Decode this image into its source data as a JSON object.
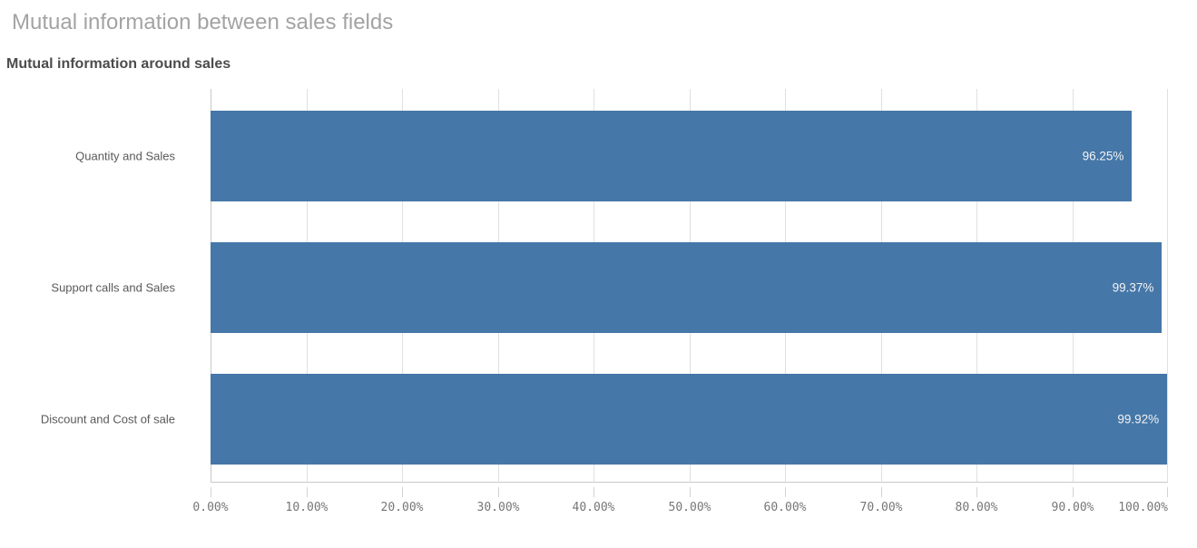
{
  "header": {
    "title": "Mutual information between sales fields",
    "subtitle": "Mutual information around sales"
  },
  "chart_data": {
    "type": "bar",
    "orientation": "horizontal",
    "title": "Mutual information around sales",
    "categories": [
      "Quantity and Sales",
      "Support calls and Sales",
      "Discount and Cost of sale"
    ],
    "values": [
      96.25,
      99.37,
      99.92
    ],
    "value_labels": [
      "96.25%",
      "99.37%",
      "99.92%"
    ],
    "xlabel": "",
    "ylabel": "",
    "xlim": [
      0,
      100
    ],
    "x_tick_labels": [
      "0.00%",
      "10.00%",
      "20.00%",
      "30.00%",
      "40.00%",
      "50.00%",
      "60.00%",
      "70.00%",
      "80.00%",
      "90.00%",
      "100.00%"
    ],
    "grid": true,
    "legend": false,
    "colors": {
      "bar": "#4577a8",
      "bar_value_text": "#f3f3f3",
      "gridline": "#e0e0e0",
      "axis_line": "#c9c9c9",
      "title_text": "#a3a3a3",
      "subtitle_text": "#4c4c4c",
      "category_text": "#595959",
      "tick_text": "#767676"
    }
  }
}
